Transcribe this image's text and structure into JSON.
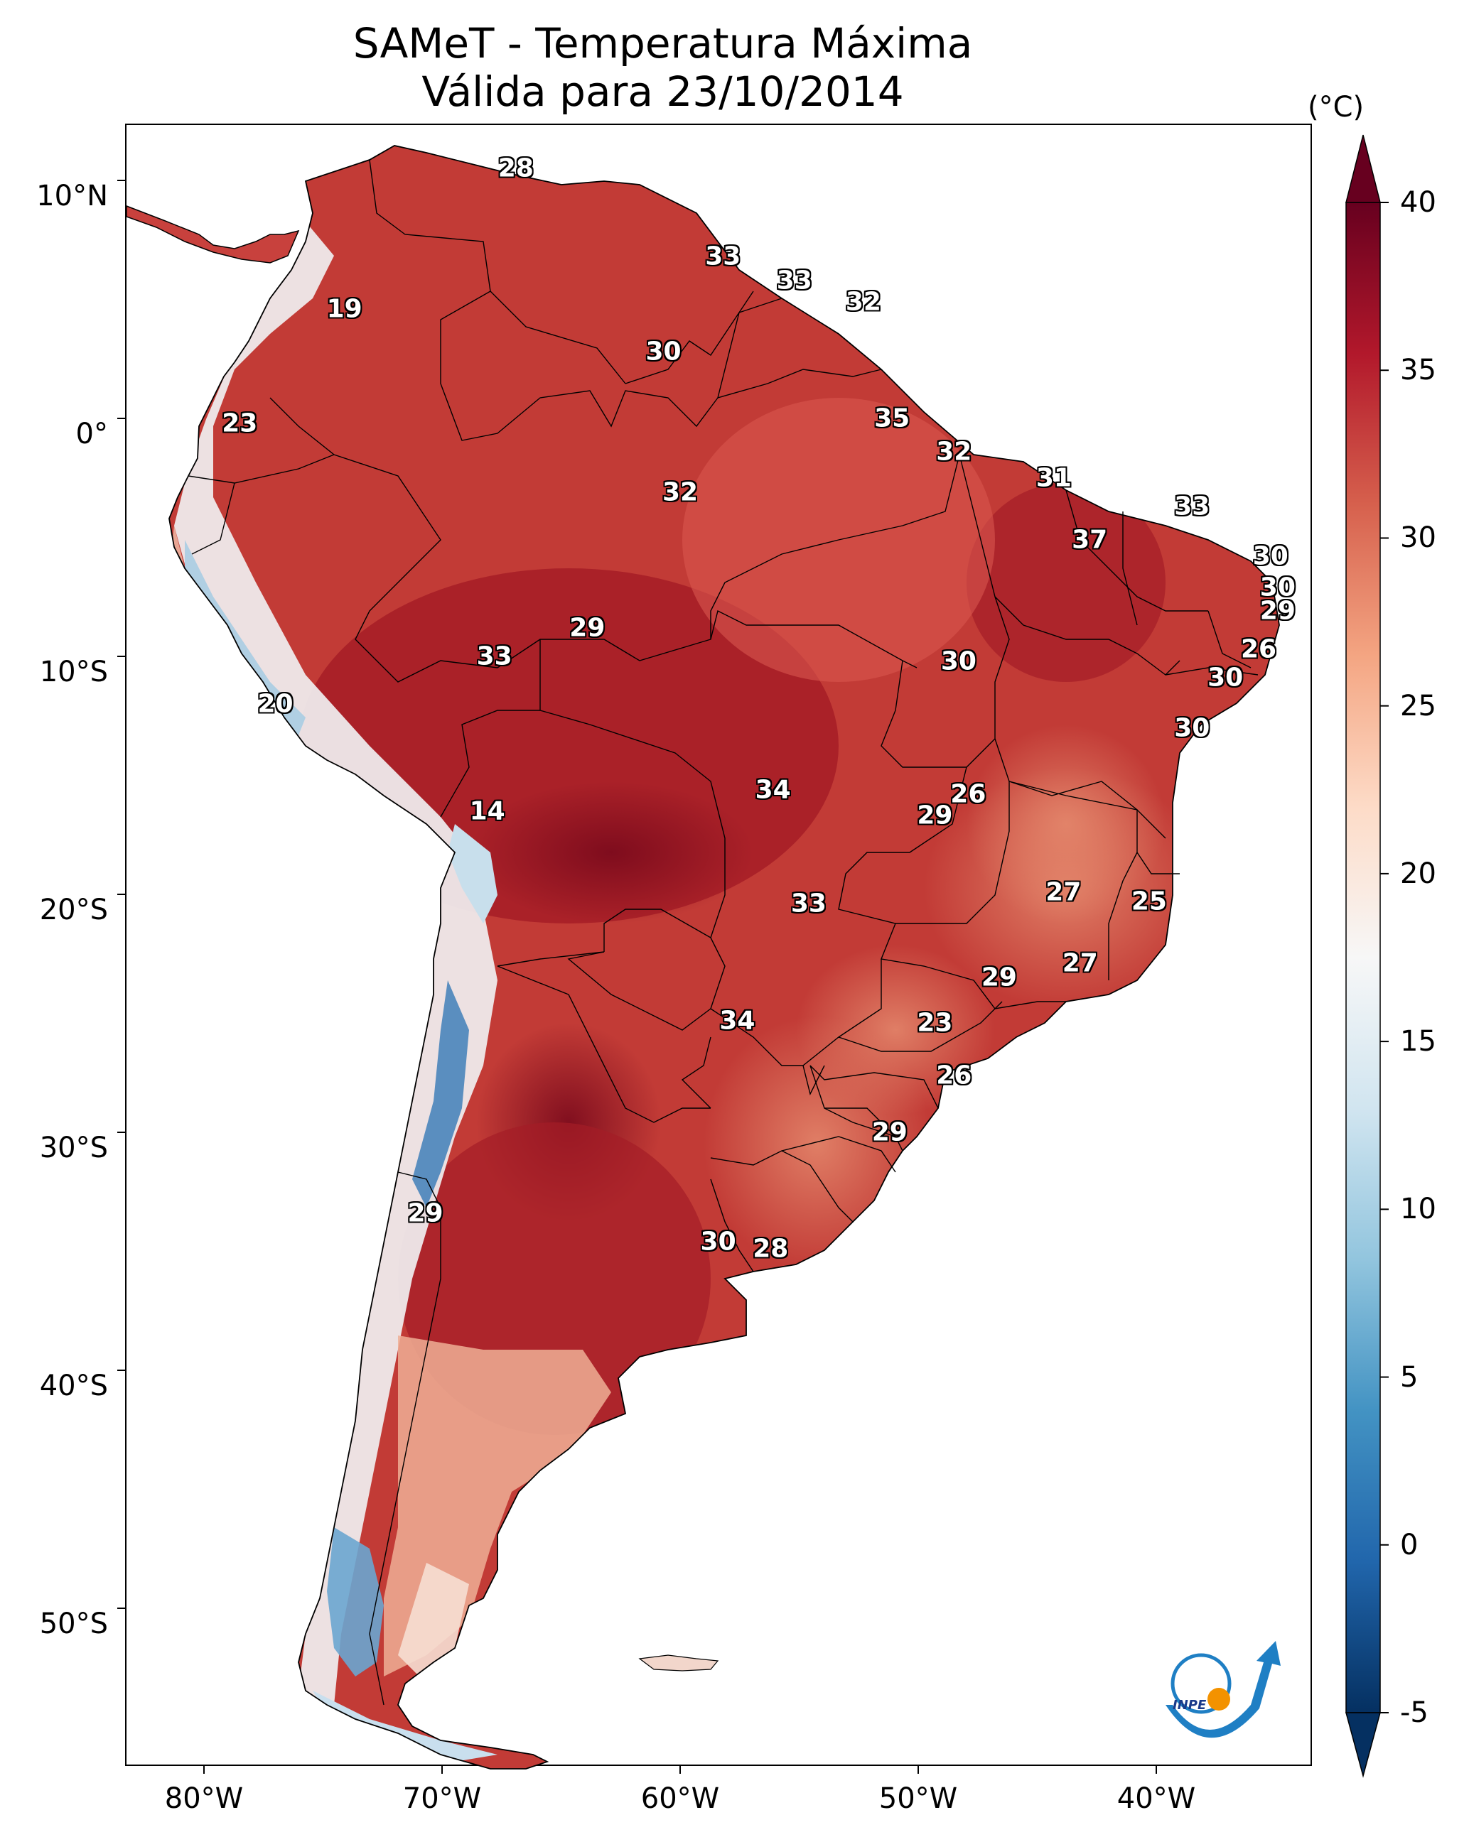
{
  "title": {
    "line1": "SAMeT - Temperatura Máxima",
    "line2": "Válida para 23/10/2014"
  },
  "map": {
    "region": "South America",
    "variable": "Maximum temperature",
    "lat_ticks": [
      "10°N",
      "0°",
      "10°S",
      "20°S",
      "30°S",
      "40°S",
      "50°S"
    ],
    "lon_ticks": [
      "80°W",
      "70°W",
      "60°W",
      "50°W",
      "40°W"
    ],
    "city_values": [
      {
        "value": "28",
        "lon": -66.9,
        "lat": 10.5
      },
      {
        "value": "19",
        "lon": -74.1,
        "lat": 4.6
      },
      {
        "value": "23",
        "lon": -78.5,
        "lat": -0.2
      },
      {
        "value": "33",
        "lon": -58.2,
        "lat": 6.8
      },
      {
        "value": "33",
        "lon": -55.2,
        "lat": 5.8
      },
      {
        "value": "32",
        "lon": -52.3,
        "lat": 4.9
      },
      {
        "value": "30",
        "lon": -60.7,
        "lat": 2.8
      },
      {
        "value": "35",
        "lon": -51.1,
        "lat": 0.0
      },
      {
        "value": "32",
        "lon": -48.5,
        "lat": -1.4
      },
      {
        "value": "32",
        "lon": -60.0,
        "lat": -3.1
      },
      {
        "value": "31",
        "lon": -44.3,
        "lat": -2.5
      },
      {
        "value": "33",
        "lon": -38.5,
        "lat": -3.7
      },
      {
        "value": "37",
        "lon": -42.8,
        "lat": -5.1
      },
      {
        "value": "30",
        "lon": -35.2,
        "lat": -5.8
      },
      {
        "value": "30",
        "lon": -34.9,
        "lat": -7.1
      },
      {
        "value": "29",
        "lon": -34.9,
        "lat": -8.1
      },
      {
        "value": "26",
        "lon": -35.7,
        "lat": -9.7
      },
      {
        "value": "30",
        "lon": -37.1,
        "lat": -10.9
      },
      {
        "value": "30",
        "lon": -38.5,
        "lat": -13.0
      },
      {
        "value": "29",
        "lon": -63.9,
        "lat": -8.8
      },
      {
        "value": "33",
        "lon": -67.8,
        "lat": -10.0
      },
      {
        "value": "30",
        "lon": -48.3,
        "lat": -10.2
      },
      {
        "value": "20",
        "lon": -77.0,
        "lat": -12.0
      },
      {
        "value": "14",
        "lon": -68.1,
        "lat": -16.5
      },
      {
        "value": "34",
        "lon": -56.1,
        "lat": -15.6
      },
      {
        "value": "26",
        "lon": -47.9,
        "lat": -15.8
      },
      {
        "value": "29",
        "lon": -49.3,
        "lat": -16.7
      },
      {
        "value": "27",
        "lon": -43.9,
        "lat": -19.9
      },
      {
        "value": "25",
        "lon": -40.3,
        "lat": -20.3
      },
      {
        "value": "33",
        "lon": -54.6,
        "lat": -20.4
      },
      {
        "value": "27",
        "lon": -43.2,
        "lat": -22.9
      },
      {
        "value": "29",
        "lon": -46.6,
        "lat": -23.5
      },
      {
        "value": "23",
        "lon": -49.3,
        "lat": -25.4
      },
      {
        "value": "34",
        "lon": -57.6,
        "lat": -25.3
      },
      {
        "value": "26",
        "lon": -48.5,
        "lat": -27.6
      },
      {
        "value": "29",
        "lon": -51.2,
        "lat": -30.0
      },
      {
        "value": "29",
        "lon": -70.7,
        "lat": -33.4
      },
      {
        "value": "30",
        "lon": -58.4,
        "lat": -34.6
      },
      {
        "value": "28",
        "lon": -56.2,
        "lat": -34.9
      }
    ]
  },
  "colorbar": {
    "unit": "(°C)",
    "vmin": -5,
    "vmax": 40,
    "tick_labels": [
      "40",
      "35",
      "30",
      "25",
      "20",
      "15",
      "10",
      "5",
      "0",
      "-5"
    ],
    "colors": [
      "#053061",
      "#2166ac",
      "#4393c3",
      "#92c5de",
      "#d1e5f0",
      "#f7f7f7",
      "#fddbc7",
      "#f4a582",
      "#d6604d",
      "#b2182b",
      "#67001f"
    ]
  },
  "logo": {
    "text": "INPE"
  }
}
